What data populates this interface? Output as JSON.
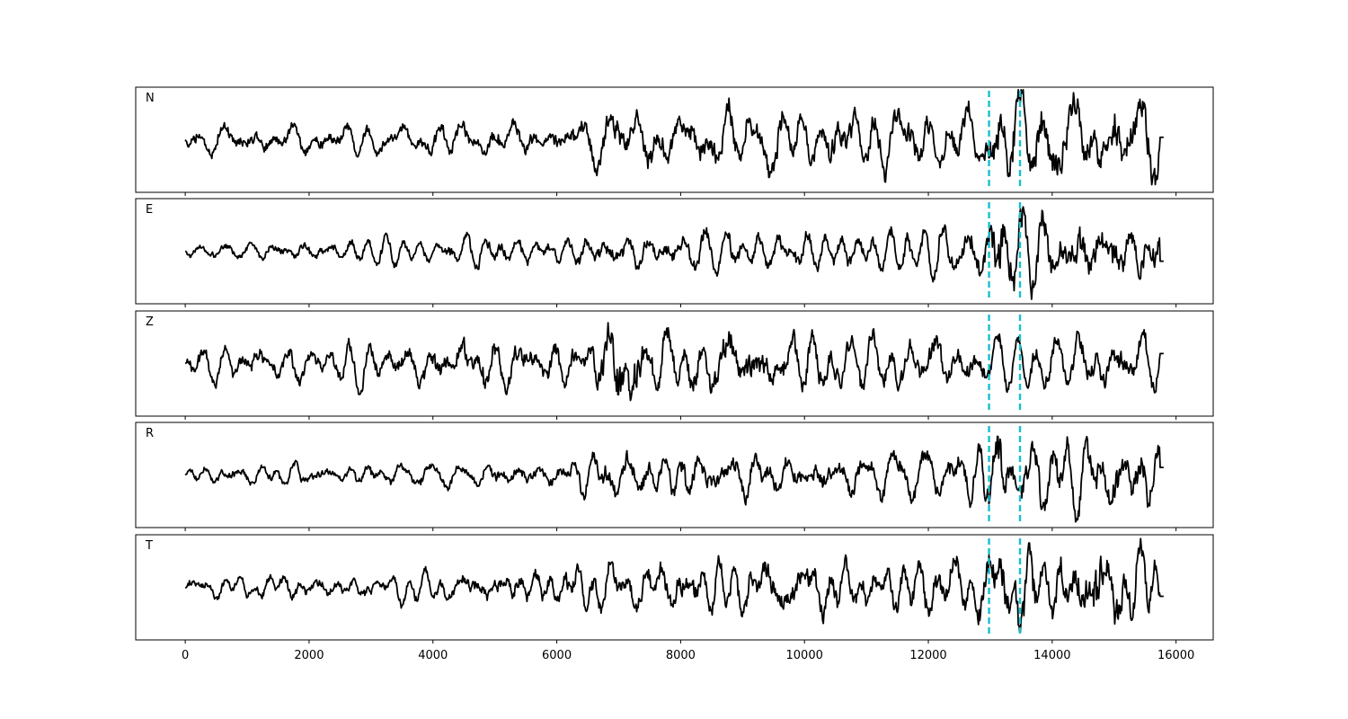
{
  "chart_data": {
    "type": "line",
    "panels": [
      "N",
      "E",
      "Z",
      "R",
      "T"
    ],
    "xlim": [
      -800,
      16600
    ],
    "xticks": [
      0,
      2000,
      4000,
      6000,
      8000,
      10000,
      12000,
      14000,
      16000
    ],
    "x_range": [
      0,
      15800
    ],
    "markers": [
      12980,
      13480
    ],
    "marker_color": "#17becf",
    "trace_color": "#000000",
    "grid": false,
    "legend": "none",
    "series": [
      {
        "name": "N",
        "envelope": [
          [
            0,
            0.22
          ],
          [
            1900,
            0.24
          ],
          [
            2000,
            0.25
          ],
          [
            6000,
            0.28
          ],
          [
            6600,
            0.42
          ],
          [
            7000,
            0.55
          ],
          [
            9000,
            0.55
          ],
          [
            12900,
            0.5
          ],
          [
            13100,
            0.95
          ],
          [
            14500,
            0.7
          ],
          [
            15300,
            0.75
          ],
          [
            15800,
            0.6
          ]
        ],
        "offset": -0.12,
        "end": 0.05
      },
      {
        "name": "E",
        "envelope": [
          [
            0,
            0.12
          ],
          [
            1500,
            0.16
          ],
          [
            4000,
            0.2
          ],
          [
            6000,
            0.22
          ],
          [
            6900,
            0.32
          ],
          [
            8000,
            0.3
          ],
          [
            12400,
            0.32
          ],
          [
            12900,
            0.45
          ],
          [
            13200,
            1.0
          ],
          [
            13500,
            0.6
          ],
          [
            14500,
            0.7
          ],
          [
            15800,
            0.55
          ]
        ],
        "offset": 0.0,
        "end": -0.2
      },
      {
        "name": "Z",
        "envelope": [
          [
            0,
            0.25
          ],
          [
            4000,
            0.35
          ],
          [
            4500,
            0.45
          ],
          [
            6500,
            0.35
          ],
          [
            6700,
            0.85
          ],
          [
            7300,
            0.9
          ],
          [
            7500,
            0.55
          ],
          [
            9000,
            0.55
          ],
          [
            10500,
            0.45
          ],
          [
            12000,
            0.4
          ],
          [
            13000,
            0.35
          ],
          [
            14000,
            0.4
          ],
          [
            15800,
            0.5
          ]
        ],
        "offset": 0.0,
        "end": 0.2
      },
      {
        "name": "R",
        "envelope": [
          [
            0,
            0.15
          ],
          [
            2000,
            0.18
          ],
          [
            4000,
            0.2
          ],
          [
            6000,
            0.22
          ],
          [
            7000,
            0.4
          ],
          [
            11000,
            0.35
          ],
          [
            12500,
            0.45
          ],
          [
            12950,
            0.6
          ],
          [
            13150,
            1.0
          ],
          [
            13600,
            0.55
          ],
          [
            14600,
            0.65
          ],
          [
            15800,
            0.55
          ]
        ],
        "offset": 0.0,
        "end": 0.15
      },
      {
        "name": "T",
        "envelope": [
          [
            0,
            0.18
          ],
          [
            2000,
            0.2
          ],
          [
            4000,
            0.22
          ],
          [
            6900,
            0.4
          ],
          [
            8000,
            0.45
          ],
          [
            12000,
            0.45
          ],
          [
            13000,
            0.55
          ],
          [
            13200,
            0.85
          ],
          [
            14000,
            0.5
          ],
          [
            14700,
            0.95
          ],
          [
            15800,
            0.5
          ]
        ],
        "offset": -0.05,
        "end": -0.18
      }
    ]
  }
}
